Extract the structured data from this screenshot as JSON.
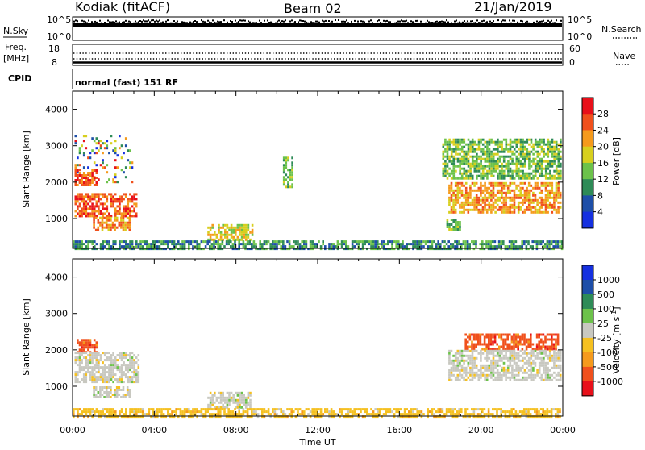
{
  "header": {
    "station": "Kodiak (fitACF)",
    "beam": "Beam 02",
    "date": "21/Jan/2019"
  },
  "top_panels": {
    "nsky_label": "N.Sky",
    "nsky_ticks": [
      "10^5",
      "10^0"
    ],
    "nsearch_label": "N.Search",
    "nsearch_ticks": [
      "10^5",
      "10^0"
    ],
    "freq_label_1": "Freq.",
    "freq_label_2": "[MHz]",
    "freq_ticks": [
      "18",
      "8"
    ],
    "nave_label": "Nave",
    "nave_ticks": [
      "60",
      "0"
    ],
    "cpid_label": "CPID",
    "cpid_value": "normal (fast) 151 RF"
  },
  "chart_data": [
    {
      "type": "heatmap",
      "ylabel": "Slant Range [km]",
      "xlim": [
        "00:00",
        "24:00"
      ],
      "ylim": [
        180,
        4500
      ],
      "yticks": [
        "1000",
        "2000",
        "3000",
        "4000"
      ],
      "colorbar": {
        "label": "Power [dB]",
        "ticks": [
          "28",
          "24",
          "20",
          "16",
          "12",
          "8",
          "4"
        ],
        "colors": [
          "#e8101a",
          "#f0501c",
          "#f59a1c",
          "#d7cf1e",
          "#6cc24a",
          "#2e8b57",
          "#1e4fa8",
          "#1530e0"
        ]
      },
      "regions": [
        {
          "t0": 0.1,
          "t1": 2.9,
          "r0": 2000,
          "r1": 3300,
          "desc": "sparse"
        },
        {
          "t0": 0.1,
          "t1": 1.2,
          "r0": 1900,
          "r1": 2350,
          "value_db": 26
        },
        {
          "t0": 0.1,
          "t1": 3.1,
          "r0": 1050,
          "r1": 1700,
          "value_db": 24
        },
        {
          "t0": 1.0,
          "t1": 2.8,
          "r0": 700,
          "r1": 1050,
          "value_db": 22
        },
        {
          "t0": 6.6,
          "t1": 8.8,
          "r0": 450,
          "r1": 850,
          "value_db": 18
        },
        {
          "t0": 10.3,
          "t1": 10.8,
          "r0": 1900,
          "r1": 2700,
          "value_db": 12
        },
        {
          "t0": 18.1,
          "t1": 23.9,
          "r0": 2100,
          "r1": 3200,
          "value_db": 14
        },
        {
          "t0": 18.4,
          "t1": 23.9,
          "r0": 1200,
          "r1": 2000,
          "value_db": 20
        },
        {
          "t0": 18.3,
          "t1": 19.0,
          "r0": 700,
          "r1": 1000,
          "value_db": 14
        },
        {
          "t0": 0.0,
          "t1": 24.0,
          "r0": 180,
          "r1": 400,
          "value_db": 10
        }
      ]
    },
    {
      "type": "heatmap",
      "ylabel": "Slant Range [km]",
      "xlabel": "Time UT",
      "xlim": [
        "00:00",
        "24:00"
      ],
      "ylim": [
        180,
        4500
      ],
      "xticks": [
        "00:00",
        "04:00",
        "08:00",
        "12:00",
        "16:00",
        "20:00",
        "00:00"
      ],
      "yticks": [
        "1000",
        "2000",
        "3000",
        "4000"
      ],
      "colorbar": {
        "label": "Velocity [m s^-1]",
        "ticks": [
          "1000",
          "500",
          "100",
          "25",
          "-25",
          "-100",
          "-500",
          "-1000"
        ],
        "colors": [
          "#1530e0",
          "#1e4fa8",
          "#2e8b57",
          "#6cc24a",
          "#c8c8c0",
          "#f5c020",
          "#f59a1c",
          "#f0501c",
          "#e8101a"
        ]
      },
      "regions": [
        {
          "t0": 0.2,
          "t1": 1.2,
          "r0": 1950,
          "r1": 2300,
          "value_ms": -300
        },
        {
          "t0": 0.1,
          "t1": 3.2,
          "r0": 1100,
          "r1": 1950,
          "value_ms": 0
        },
        {
          "t0": 1.0,
          "t1": 2.8,
          "r0": 700,
          "r1": 1000,
          "value_ms": 0
        },
        {
          "t0": 6.6,
          "t1": 8.7,
          "r0": 450,
          "r1": 850,
          "value_ms": 0
        },
        {
          "t0": 19.2,
          "t1": 23.8,
          "r0": 2050,
          "r1": 2450,
          "value_ms": -300
        },
        {
          "t0": 18.4,
          "t1": 23.9,
          "r0": 1200,
          "r1": 2000,
          "value_ms": 0
        },
        {
          "t0": 0.0,
          "t1": 24.0,
          "r0": 180,
          "r1": 400,
          "value_ms": -60
        }
      ]
    }
  ]
}
